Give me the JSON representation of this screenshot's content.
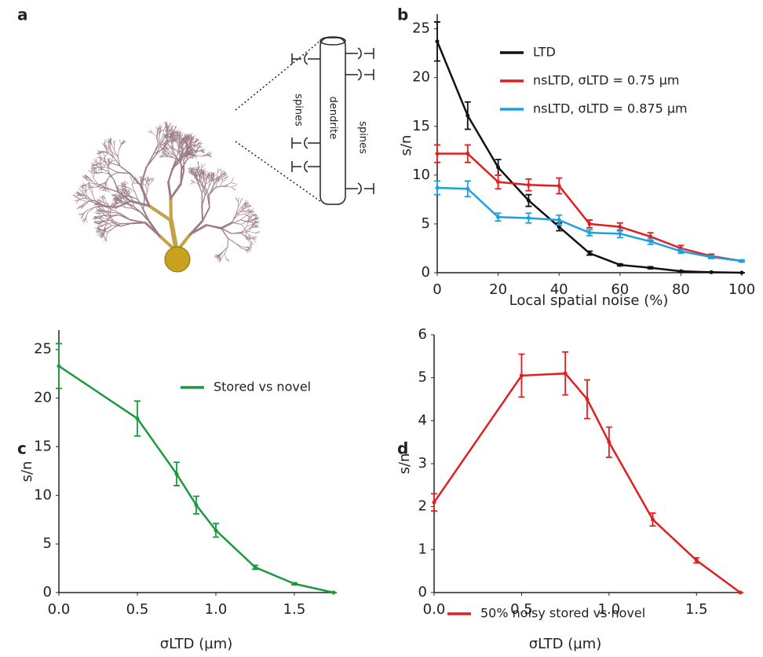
{
  "panel_labels": [
    "a",
    "b",
    "c",
    "d"
  ],
  "illustration": {
    "labels": [
      "spines",
      "dendrite",
      "spines"
    ]
  },
  "chart_data": [
    {
      "type": "line",
      "x": [
        0,
        10,
        20,
        30,
        40,
        50,
        60,
        70,
        80,
        90,
        100
      ],
      "xlim": [
        0,
        100
      ],
      "xticks": [
        0,
        20,
        40,
        60,
        80,
        100
      ],
      "ylim": [
        0,
        26.5
      ],
      "yticks": [
        0,
        5,
        10,
        15,
        20,
        25
      ],
      "xlabel": "Local spatial noise (%)",
      "ylabel": "s/n",
      "series": [
        {
          "name": "LTD",
          "color": "#111111",
          "values": [
            23.7,
            16.1,
            10.8,
            7.4,
            4.7,
            2.0,
            0.8,
            0.5,
            0.15,
            0.05,
            0
          ],
          "errors": [
            2.0,
            1.4,
            0.8,
            0.6,
            0.4,
            0.2,
            0.1,
            0.1,
            0.05,
            0.02,
            0
          ]
        },
        {
          "name": "nsLTD, σLTD = 0.75 µm",
          "color": "#e02020",
          "values": [
            12.2,
            12.2,
            9.3,
            9.0,
            8.9,
            5.0,
            4.7,
            3.7,
            2.5,
            1.7,
            1.2
          ],
          "errors": [
            0.9,
            0.9,
            0.7,
            0.6,
            0.8,
            0.4,
            0.4,
            0.4,
            0.3,
            0.2,
            0.1
          ]
        },
        {
          "name": "nsLTD, σLTD = 0.875 µm",
          "color": "#1ba1e2",
          "values": [
            8.7,
            8.6,
            5.7,
            5.6,
            5.4,
            4.1,
            4.0,
            3.2,
            2.2,
            1.6,
            1.2
          ],
          "errors": [
            0.7,
            0.8,
            0.4,
            0.5,
            0.5,
            0.3,
            0.4,
            0.3,
            0.2,
            0.15,
            0.1
          ]
        }
      ]
    },
    {
      "type": "line",
      "x": [
        0,
        0.5,
        0.75,
        0.875,
        1.0,
        1.25,
        1.5,
        1.75
      ],
      "xlim": [
        0,
        1.75
      ],
      "xticks": [
        {
          "value": 0,
          "label": "0.0"
        },
        0.5,
        {
          "value": 1,
          "label": "1.0"
        },
        1.5
      ],
      "ylim": [
        0,
        27
      ],
      "yticks": [
        0,
        5,
        10,
        15,
        20,
        25
      ],
      "xlabel": "σLTD (µm)",
      "ylabel": "s/n",
      "series": [
        {
          "name": "Stored vs novel",
          "color": "#1a9a3c",
          "values": [
            23.3,
            17.9,
            12.2,
            9.0,
            6.4,
            2.6,
            0.9,
            0
          ],
          "errors": [
            2.3,
            1.8,
            1.2,
            0.9,
            0.7,
            0.2,
            0.1,
            0
          ]
        }
      ]
    },
    {
      "type": "line",
      "x": [
        0,
        0.5,
        0.75,
        0.875,
        1.0,
        1.25,
        1.5,
        1.75
      ],
      "xlim": [
        0,
        1.75
      ],
      "xticks": [
        {
          "value": 0,
          "label": "0.0"
        },
        0.5,
        {
          "value": 1,
          "label": "1.0"
        },
        1.5
      ],
      "ylim": [
        0,
        6
      ],
      "yticks": [
        0,
        1,
        2,
        3,
        4,
        5,
        6
      ],
      "xlabel": "σLTD (µm)",
      "ylabel": "s/n",
      "series": [
        {
          "name": "50% noisy stored vs novel",
          "color": "#e02020",
          "values": [
            2.1,
            5.05,
            5.1,
            4.5,
            3.5,
            1.7,
            0.75,
            0
          ],
          "errors": [
            0.2,
            0.5,
            0.5,
            0.45,
            0.35,
            0.15,
            0.06,
            0
          ]
        }
      ]
    }
  ]
}
